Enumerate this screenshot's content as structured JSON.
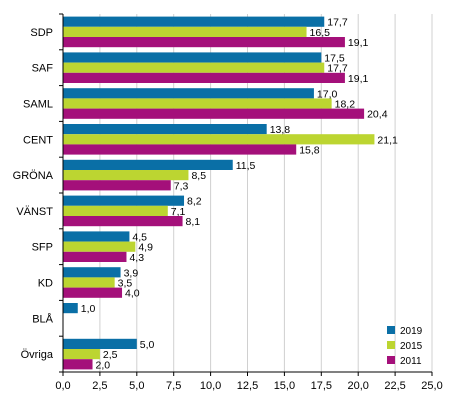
{
  "chart_data": {
    "type": "bar",
    "orientation": "horizontal",
    "categories": [
      "SDP",
      "SAF",
      "SAML",
      "CENT",
      "GRÖNA",
      "VÄNST",
      "SFP",
      "KD",
      "BLÅ",
      "Övriga"
    ],
    "series": [
      {
        "name": "2019",
        "color": "#0a6fa6",
        "values": [
          17.7,
          17.5,
          17.0,
          13.8,
          11.5,
          8.2,
          4.5,
          3.9,
          1.0,
          5.0
        ],
        "labels": [
          "17,7",
          "17,5",
          "17,0",
          "13,8",
          "11,5",
          "8,2",
          "4,5",
          "3,9",
          "1,0",
          "5,0"
        ]
      },
      {
        "name": "2015",
        "color": "#bcd531",
        "values": [
          16.5,
          17.7,
          18.2,
          21.1,
          8.5,
          7.1,
          4.9,
          3.5,
          null,
          2.5
        ],
        "labels": [
          "16,5",
          "17,7",
          "18,2",
          "21,1",
          "8,5",
          "7,1",
          "4,9",
          "3,5",
          "",
          "2,5"
        ]
      },
      {
        "name": "2011",
        "color": "#a4107a",
        "values": [
          19.1,
          19.1,
          20.4,
          15.8,
          7.3,
          8.1,
          4.3,
          4.0,
          null,
          2.0
        ],
        "labels": [
          "19,1",
          "19,1",
          "20,4",
          "15,8",
          "7,3",
          "8,1",
          "4,3",
          "4,0",
          "",
          "2,0"
        ]
      }
    ],
    "xlim": [
      0,
      25
    ],
    "x_ticks": [
      "0,0",
      "2,5",
      "5,0",
      "7,5",
      "10,0",
      "12,5",
      "15,0",
      "17,5",
      "20,0",
      "22,5",
      "25,0"
    ],
    "grid": true,
    "legend_position": "bottom-right"
  }
}
